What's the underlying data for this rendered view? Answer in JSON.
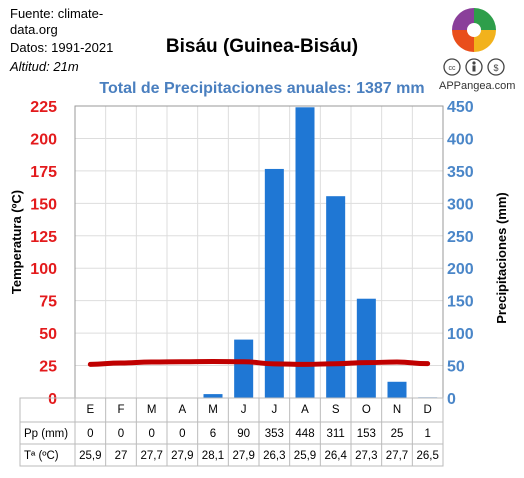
{
  "header": {
    "source_line1": "Fuente: climate-",
    "source_line2": "data.org",
    "period": "Datos: 1991-2021",
    "altitude": "Altitud: 21m",
    "title": "Bisáu (Guinea-Bisáu)",
    "total": "Total de Precipitaciones anuales: 1387 mm",
    "brand": "APPangea.com"
  },
  "colors": {
    "bars": "#1f77d4",
    "temp_line": "#c00000",
    "left_axis": "#e31a1c",
    "right_axis": "#4a86c8",
    "total_text": "#4a7fbf"
  },
  "icons": [
    "appangea-logo-icon",
    "creative-commons-icon",
    "attribution-icon",
    "non-commercial-icon"
  ],
  "chart_data": {
    "type": "bar",
    "categories": [
      "E",
      "F",
      "M",
      "A",
      "M",
      "J",
      "J",
      "A",
      "S",
      "O",
      "N",
      "D"
    ],
    "series": [
      {
        "name": "Pp (mm)",
        "type": "bar",
        "axis": "right",
        "values": [
          0,
          0,
          0,
          0,
          6,
          90,
          353,
          448,
          311,
          153,
          25,
          1
        ]
      },
      {
        "name": "Tª (ºC)",
        "type": "line",
        "axis": "left",
        "values": [
          25.9,
          27,
          27.7,
          27.9,
          28.1,
          27.9,
          26.3,
          25.9,
          26.4,
          27.3,
          27.7,
          26.5
        ]
      }
    ],
    "ylabel_left": "Temperatura (ºC)",
    "ylabel_right": "Precipitaciones (mm)",
    "ylim_left": [
      0,
      225
    ],
    "ylim_right": [
      0,
      450
    ],
    "yticks_left": [
      "0",
      "25",
      "50",
      "75",
      "100",
      "125",
      "150",
      "175",
      "200",
      "225"
    ],
    "yticks_right": [
      "0",
      "50",
      "100",
      "150",
      "200",
      "250",
      "300",
      "350",
      "400",
      "450"
    ],
    "grid": true,
    "table": {
      "row_labels": [
        "Pp (mm)",
        "Tª (ºC)"
      ],
      "pp": [
        "0",
        "0",
        "0",
        "0",
        "6",
        "90",
        "353",
        "448",
        "311",
        "153",
        "25",
        "1"
      ],
      "temp": [
        "25,9",
        "27",
        "27,7",
        "27,9",
        "28,1",
        "27,9",
        "26,3",
        "25,9",
        "26,4",
        "27,3",
        "27,7",
        "26,5"
      ]
    }
  }
}
